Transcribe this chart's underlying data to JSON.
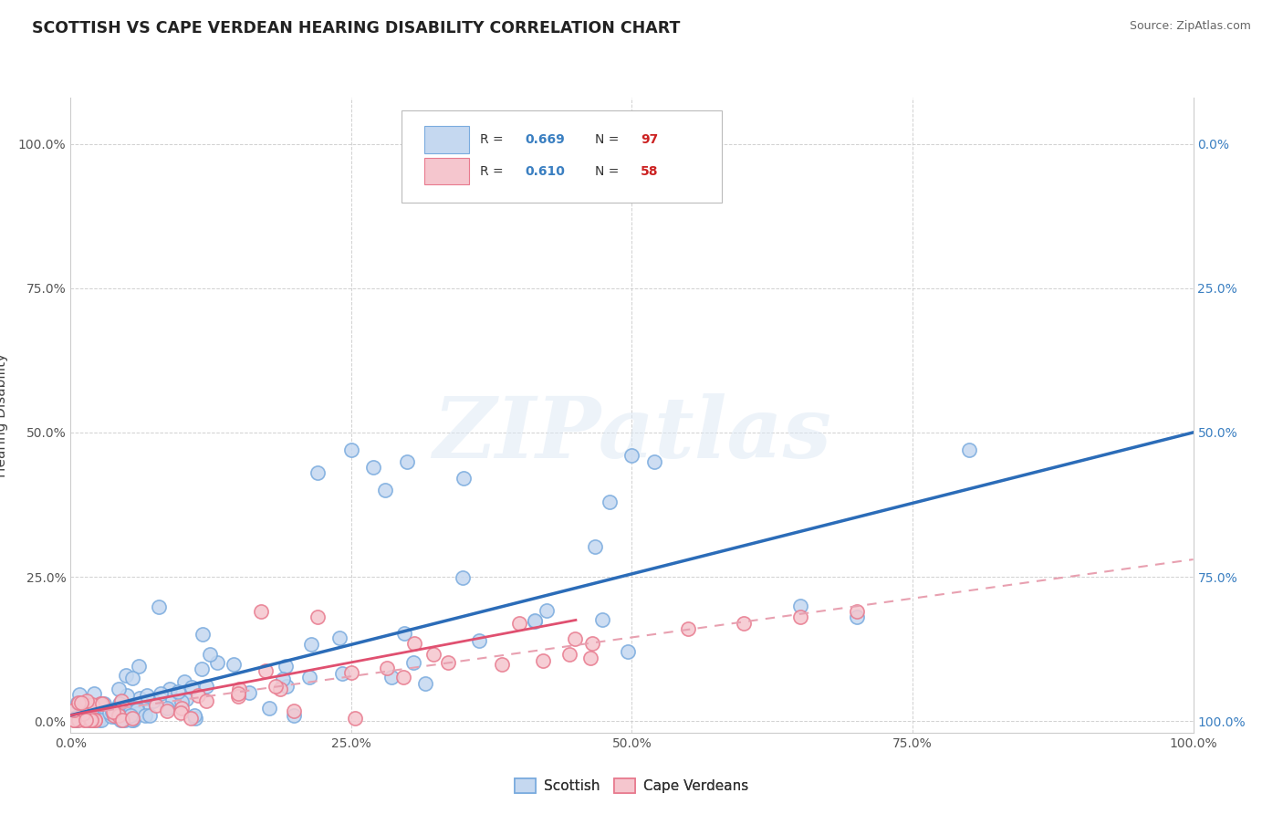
{
  "title": "SCOTTISH VS CAPE VERDEAN HEARING DISABILITY CORRELATION CHART",
  "source": "Source: ZipAtlas.com",
  "ylabel": "Hearing Disability",
  "xlim": [
    0,
    1
  ],
  "ylim": [
    -0.02,
    1.08
  ],
  "xtick_labels": [
    "0.0%",
    "25.0%",
    "50.0%",
    "75.0%",
    "100.0%"
  ],
  "xtick_vals": [
    0,
    0.25,
    0.5,
    0.75,
    1.0
  ],
  "ytick_labels": [
    "0.0%",
    "25.0%",
    "50.0%",
    "75.0%",
    "100.0%"
  ],
  "ytick_vals": [
    0,
    0.25,
    0.5,
    0.75,
    1.0
  ],
  "right_ytick_labels": [
    "100.0%",
    "75.0%",
    "50.0%",
    "25.0%",
    "0.0%"
  ],
  "scottish_color_face": "#c5d8f0",
  "scottish_color_edge": "#7aabde",
  "cape_verdean_color_face": "#f5c6ce",
  "cape_verdean_color_edge": "#e87a8e",
  "scottish_line_color": "#2b6cb8",
  "cape_line_color": "#e05070",
  "cape_dash_color": "#e8a0b0",
  "scottish_R": 0.669,
  "scottish_N": 97,
  "cape_verdean_R": 0.61,
  "cape_verdean_N": 58,
  "watermark": "ZIPatlas",
  "background_color": "#ffffff",
  "grid_color": "#cccccc",
  "legend_R_color": "#3a7fc1",
  "legend_N_color": "#cc2222",
  "title_color": "#222222",
  "source_color": "#666666",
  "axis_label_color": "#555555",
  "right_axis_color": "#3a7fc1"
}
